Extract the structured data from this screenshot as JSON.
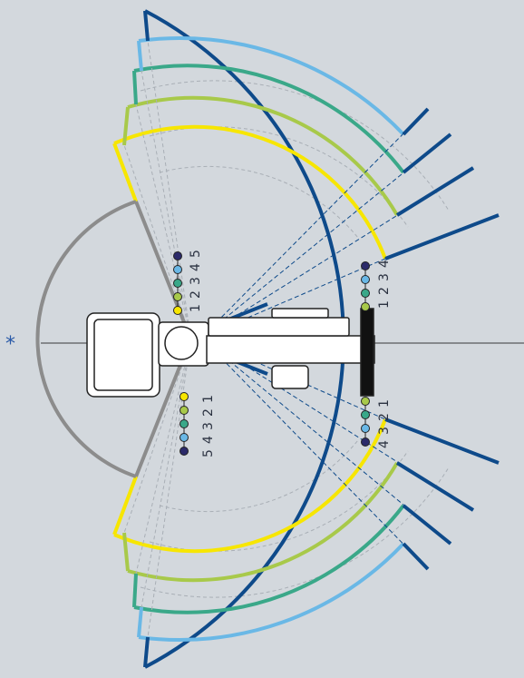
{
  "colors": {
    "background": "#d3d8dd",
    "navy": "#0e4a8a",
    "gray": "#8c8c8c",
    "yellow": "#f7e600",
    "lime": "#a8c94a",
    "teal": "#3aa889",
    "skyblue": "#6ab8e6",
    "darknavy": "#2b2a6a",
    "guide": "#a9afb6"
  },
  "marker": {
    "symbol": "*"
  },
  "left_top_labels": {
    "l1": "1",
    "l2": "2",
    "l3": "3",
    "l4": "4",
    "l5": "5"
  },
  "left_bottom_labels": {
    "l1": "1",
    "l2": "2",
    "l3": "3",
    "l4": "4",
    "l5": "5"
  },
  "right_top_labels": {
    "l1": "1",
    "l2": "2",
    "l3": "3",
    "l4": "4"
  },
  "right_bottom_labels": {
    "l1": "1",
    "l2": "2",
    "l3": "3",
    "l4": "4"
  },
  "zones": [
    {
      "name": "1",
      "color": "yellow"
    },
    {
      "name": "2",
      "color": "lime"
    },
    {
      "name": "3",
      "color": "teal"
    },
    {
      "name": "4",
      "color": "skyblue"
    },
    {
      "name": "5",
      "color": "darknavy"
    }
  ]
}
